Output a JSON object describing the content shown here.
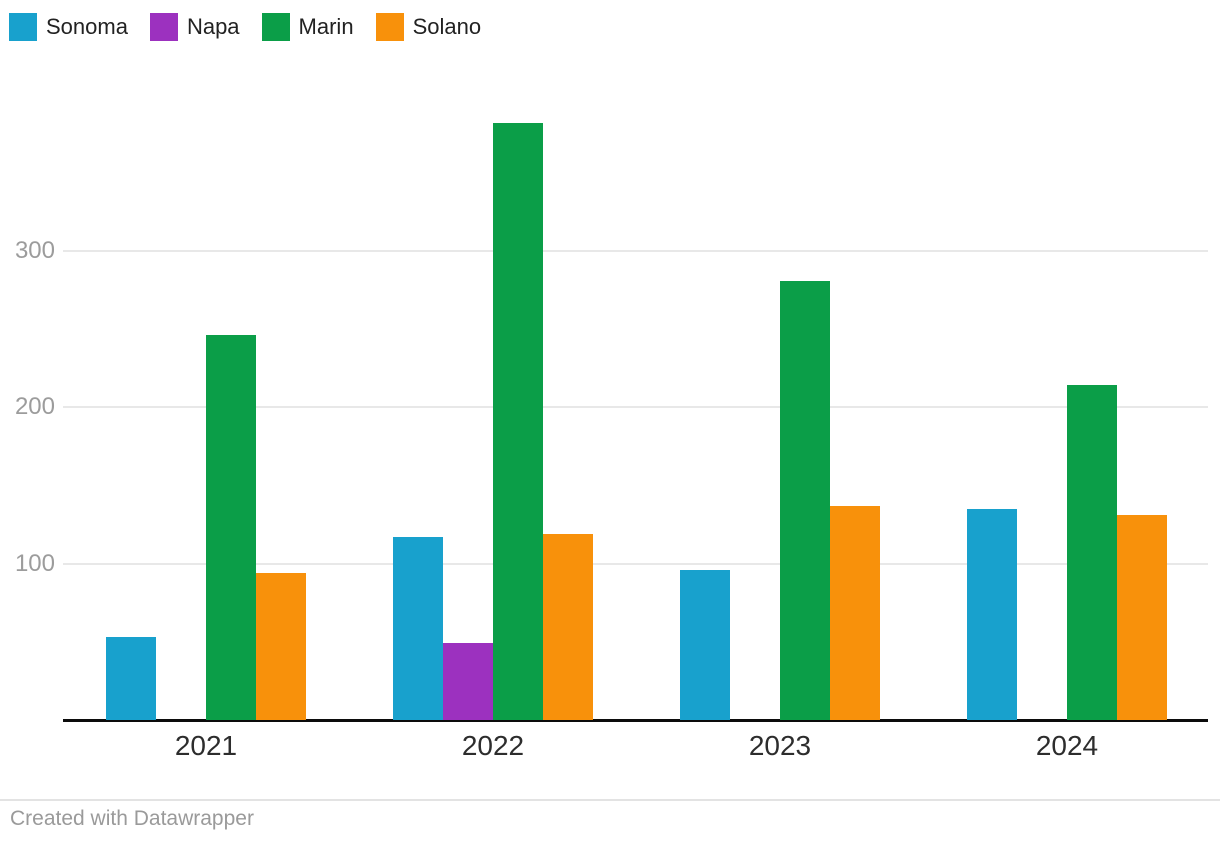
{
  "chart_data": {
    "type": "bar",
    "title": "",
    "xlabel": "",
    "ylabel": "",
    "categories": [
      "2021",
      "2022",
      "2023",
      "2024"
    ],
    "series": [
      {
        "name": "Sonoma",
        "color": "#18a1cd",
        "values": [
          53,
          117,
          96,
          135
        ]
      },
      {
        "name": "Napa",
        "color": "#9c31bf",
        "values": [
          0,
          49,
          0,
          0
        ]
      },
      {
        "name": "Marin",
        "color": "#0b9e48",
        "values": [
          246,
          382,
          281,
          214
        ]
      },
      {
        "name": "Solano",
        "color": "#f8910b",
        "values": [
          94,
          119,
          137,
          131
        ]
      }
    ],
    "ylim": [
      0,
      422
    ],
    "yticks": [
      100,
      200,
      300
    ],
    "grid": true,
    "legend_position": "top-left"
  },
  "footer": {
    "credit": "Created with Datawrapper"
  },
  "colors": {
    "background": "#ffffff",
    "axis_line": "#0c0c0c",
    "gridline": "#e8e8e8",
    "tick_label": "#9c9c9c",
    "category_label": "#2d2d2d",
    "footer_text": "#9a9a9a"
  }
}
